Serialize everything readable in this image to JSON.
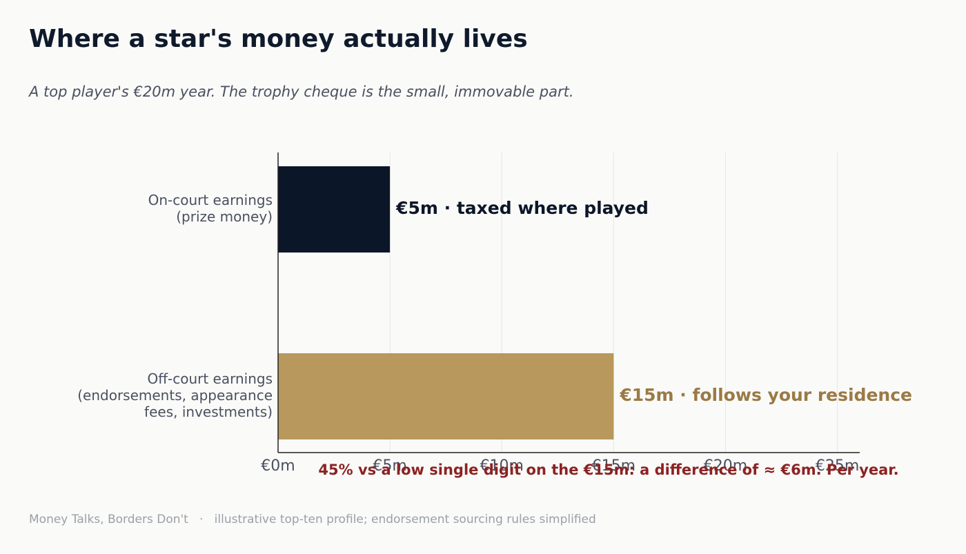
{
  "chart_data": {
    "type": "barh",
    "title": "Where a star's money actually lives",
    "subtitle": "A top player's €20m year. The trophy cheque is the small, immovable part.",
    "categories": [
      "On-court earnings\n(prize money)",
      "Off-court earnings\n(endorsements, appearance\nfees, investments)"
    ],
    "values": [
      5,
      15
    ],
    "value_labels": [
      "€5m  ·  taxed where played",
      "€15m  ·  follows your residence"
    ],
    "colors": [
      "#0b1728",
      "#b8985c"
    ],
    "value_label_colors": [
      "#0b1728",
      "#9a7a45"
    ],
    "xlim": [
      0,
      26
    ],
    "xticks": [
      {
        "value": 0,
        "label": "€0m"
      },
      {
        "value": 5,
        "label": "€5m"
      },
      {
        "value": 10,
        "label": "€10m"
      },
      {
        "value": 15,
        "label": "€15m"
      },
      {
        "value": 20,
        "label": "€20m"
      },
      {
        "value": 25,
        "label": "€25m"
      }
    ],
    "grid": true,
    "annotation": "45% vs a low single digit on the €15m: a difference of ≈ €6m. Per year.",
    "footer": "Money Talks, Borders Don't   ·   illustrative top-ten profile; endorsement sourcing rules simplified"
  }
}
